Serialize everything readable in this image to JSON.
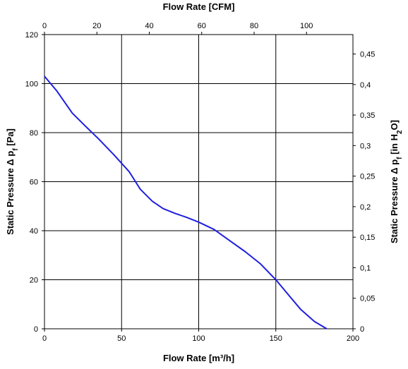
{
  "chart_data": {
    "type": "line",
    "title": "",
    "xlabel_bottom": "Flow Rate [m³/h]",
    "xlabel_top": "Flow Rate [CFM]",
    "ylabel_left_prefix": "Static Pressure Δ p",
    "ylabel_left_sub": "f",
    "ylabel_left_suffix": " [Pa]",
    "ylabel_right_prefix": "Static Pressure Δ p",
    "ylabel_right_sub": "f",
    "ylabel_right_mid": " [in H",
    "ylabel_right_sub2": "2",
    "ylabel_right_suffix": "O]",
    "xlim": [
      0,
      200
    ],
    "ylim": [
      0,
      120
    ],
    "x_top_lim_cfm": [
      0,
      117.72
    ],
    "y_right_lim_inh2o": [
      0,
      0.4818
    ],
    "x_ticks": [
      "0",
      "50",
      "100",
      "150",
      "200"
    ],
    "x_tick_values": [
      0,
      50,
      100,
      150,
      200
    ],
    "x_top_ticks": [
      "0",
      "20",
      "40",
      "60",
      "80",
      "100"
    ],
    "x_top_tick_values": [
      0,
      20,
      40,
      60,
      80,
      100
    ],
    "y_ticks": [
      "0",
      "20",
      "40",
      "60",
      "80",
      "100",
      "120"
    ],
    "y_tick_values": [
      0,
      20,
      40,
      60,
      80,
      100,
      120
    ],
    "y_right_ticks": [
      "0",
      "0,05",
      "0,1",
      "0,15",
      "0,2",
      "0,25",
      "0,3",
      "0,35",
      "0,4",
      "0,45"
    ],
    "y_right_tick_values": [
      0,
      0.05,
      0.1,
      0.15,
      0.2,
      0.25,
      0.3,
      0.35,
      0.4,
      0.45
    ],
    "grid": true,
    "line_color": "#1f1fe0",
    "series": [
      {
        "x": [
          0,
          8,
          18,
          26,
          35,
          45,
          55,
          62,
          70,
          77,
          85,
          92,
          100,
          110,
          120,
          130,
          140,
          150,
          158,
          166,
          175,
          183
        ],
        "y": [
          103,
          97,
          88,
          83,
          77.5,
          71,
          64,
          57,
          52,
          49,
          47,
          45.5,
          43.5,
          40.5,
          36,
          31.5,
          26.5,
          20,
          14,
          8,
          3,
          0
        ]
      }
    ]
  }
}
